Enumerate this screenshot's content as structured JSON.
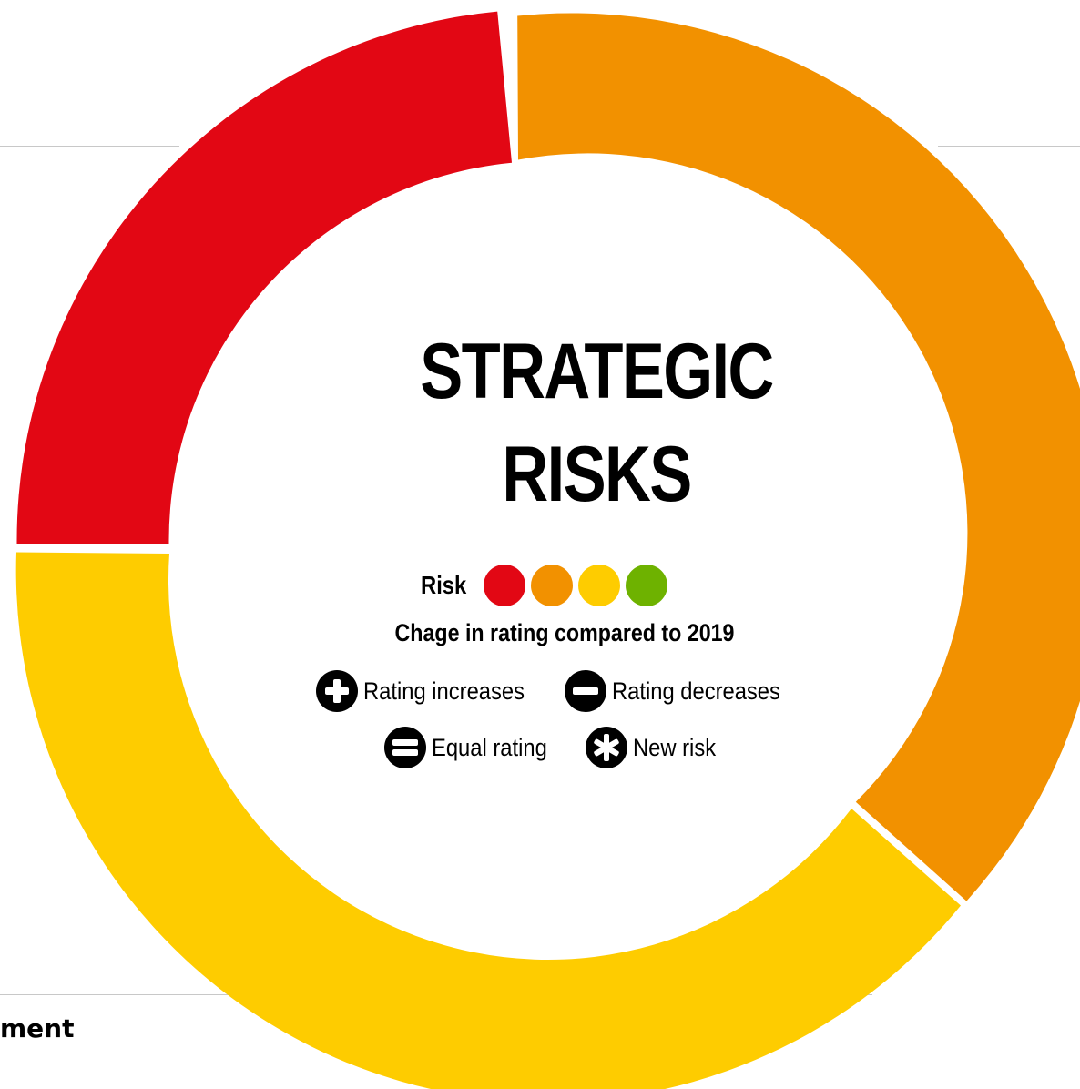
{
  "title": {
    "line1": "STRATEGIC",
    "line2": "RISKS"
  },
  "legend": {
    "risk_label": "Risk",
    "risk_colors": [
      "#e20714",
      "#f29100",
      "#fecc00",
      "#6eb200"
    ],
    "change_title": "Chage in rating compared to 2019",
    "items": {
      "increase": "Rating increases",
      "decrease": "Rating decreases",
      "equal": "Equal rating",
      "new": "New risk"
    }
  },
  "corner_text": "ment",
  "ring": {
    "segments": [
      {
        "color": "#e20714"
      },
      {
        "color": "#f29100"
      },
      {
        "color": "#fecc00"
      }
    ]
  }
}
